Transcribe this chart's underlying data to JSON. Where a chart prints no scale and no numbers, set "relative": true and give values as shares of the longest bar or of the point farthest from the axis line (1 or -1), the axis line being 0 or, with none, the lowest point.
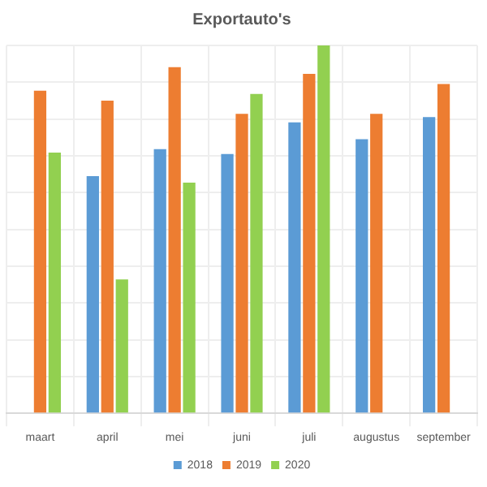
{
  "chart_data": {
    "type": "bar",
    "title": "Exportauto's",
    "relative": true,
    "grid": true,
    "legend": "bottom",
    "categories": [
      "maart",
      "april",
      "mei",
      "juni",
      "juli",
      "augustus",
      "september"
    ],
    "series": [
      {
        "name": "2018",
        "color": "#5b9bd5",
        "values": [
          null,
          0.645,
          0.718,
          0.705,
          0.791,
          0.745,
          0.805
        ]
      },
      {
        "name": "2019",
        "color": "#ed7d31",
        "values": [
          0.877,
          0.85,
          0.941,
          0.814,
          0.923,
          0.814,
          0.895
        ]
      },
      {
        "name": "2020",
        "color": "#92d050",
        "values": [
          0.709,
          0.364,
          0.627,
          0.868,
          1,
          null,
          null
        ]
      }
    ]
  }
}
